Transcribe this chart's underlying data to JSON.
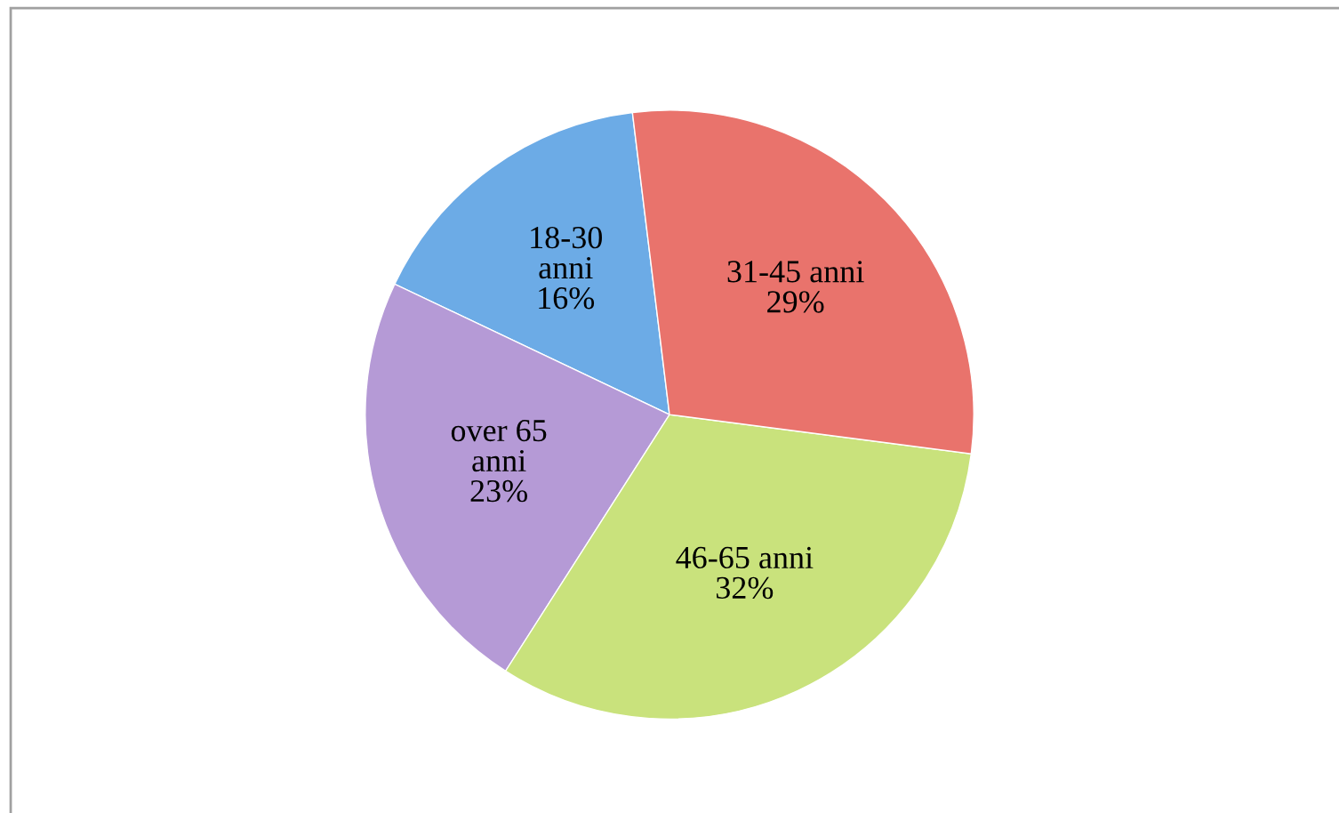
{
  "chart_data": {
    "type": "pie",
    "categories": [
      "18-30 anni",
      "over 65 anni",
      "46-65 anni",
      "31-45 anni"
    ],
    "values": [
      16,
      23,
      32,
      29
    ],
    "colors": [
      "#6cabe6",
      "#b59ad6",
      "#c9e27c",
      "#e9736c"
    ],
    "value_labels": [
      "16%",
      "23%",
      "32%",
      "29%"
    ]
  }
}
